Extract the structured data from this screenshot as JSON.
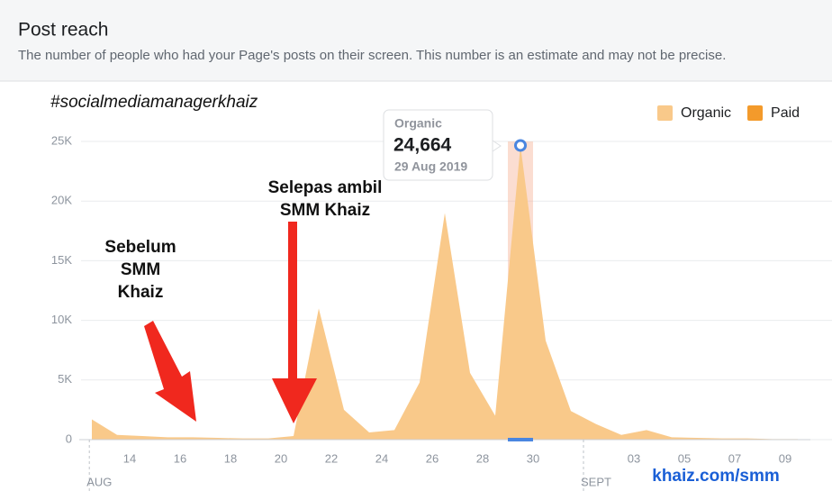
{
  "chart_data": {
    "type": "area",
    "title": "Post reach",
    "subtitle": "The number of people who had your Page's posts on their screen. This number is an estimate and may not be precise.",
    "hashtag": "#socialmediamanagerkhaiz",
    "categories": [
      null,
      null,
      "14",
      null,
      "16",
      null,
      "18",
      null,
      "20",
      null,
      "22",
      null,
      "24",
      null,
      "26",
      null,
      "28",
      null,
      "30",
      null,
      null,
      null,
      "03",
      null,
      "05",
      null,
      "07",
      null,
      "09"
    ],
    "month_labels": [
      "AUG",
      "SEPT"
    ],
    "series": [
      {
        "name": "Organic",
        "color": "#f9c98a",
        "values": [
          1700,
          400,
          300,
          200,
          200,
          150,
          100,
          100,
          300,
          11000,
          2500,
          600,
          800,
          4800,
          19000,
          5600,
          2000,
          24664,
          8300,
          2400,
          1300,
          400,
          800,
          200,
          150,
          100,
          100,
          50,
          50
        ]
      }
    ],
    "legend_entries": [
      {
        "name": "Organic",
        "color": "#f9c98a"
      },
      {
        "name": "Paid",
        "color": "#f39a2b"
      }
    ],
    "ylim": [
      0,
      25000
    ],
    "yticks": [
      0,
      {
        "value": 5000,
        "label": "5K"
      },
      {
        "value": 10000,
        "label": "10K"
      },
      {
        "value": 15000,
        "label": "15K"
      },
      {
        "value": 20000,
        "label": "20K"
      },
      {
        "value": 25000,
        "label": "25K"
      }
    ],
    "grid": true,
    "tooltip": {
      "series": "Organic",
      "value": "24,664",
      "date": "29 Aug 2019"
    },
    "annotations": [
      {
        "lines": [
          "Sebelum",
          "SMM",
          "Khaiz"
        ]
      },
      {
        "lines": [
          "Selepas ambil",
          "SMM Khaiz"
        ]
      }
    ],
    "watermark": "khaiz.com/smm"
  }
}
